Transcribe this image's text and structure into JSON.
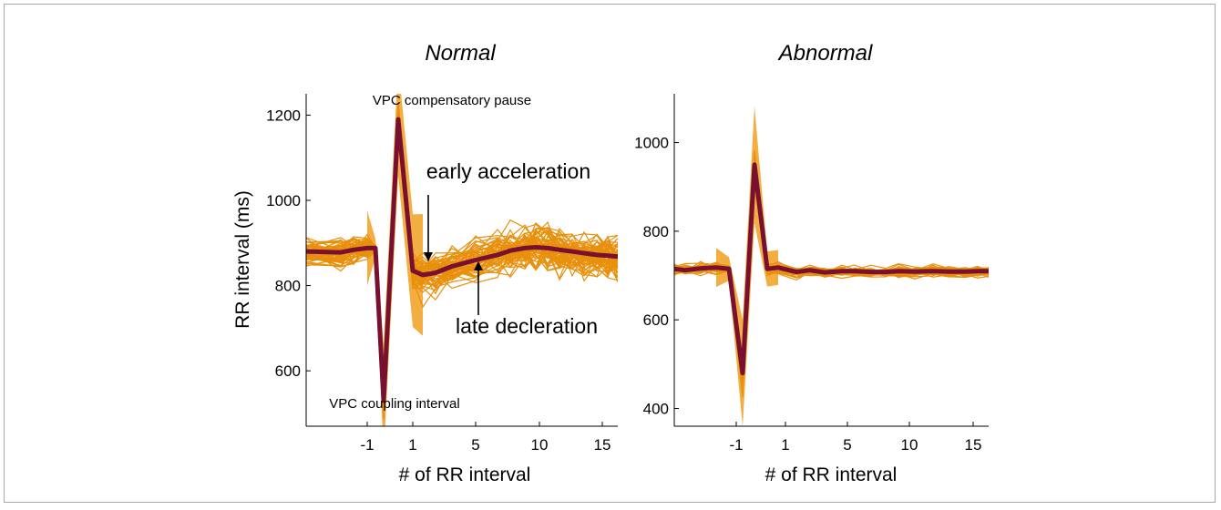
{
  "chart_data": [
    {
      "type": "line",
      "title": "Normal",
      "xlabel": "# of RR interval",
      "ylabel": "RR interval (ms)",
      "x_ticks": [
        "-1",
        "1",
        "5",
        "10",
        "15"
      ],
      "y_ticks": [
        "600",
        "800",
        "1000",
        "1200"
      ],
      "ylim": [
        470,
        1250
      ],
      "x_positions": [
        "-5",
        "-4",
        "-3",
        "-2",
        "-1",
        "VPC coupling interval",
        "VPC compensatory pause",
        "1",
        "2",
        "3",
        "4",
        "5",
        "6",
        "7",
        "8",
        "9",
        "10",
        "11",
        "12",
        "13",
        "14",
        "15",
        "16"
      ],
      "mean_series": [
        880,
        878,
        884,
        888,
        888,
        530,
        1190,
        835,
        825,
        830,
        845,
        860,
        872,
        882,
        888,
        890,
        888,
        884,
        880,
        876,
        872,
        870,
        868
      ],
      "individual_series_count": 60,
      "individual_spread_ms": [
        55,
        55,
        50,
        40,
        10,
        60,
        60,
        60,
        65,
        70,
        75,
        75,
        75,
        78,
        80,
        80,
        78,
        75,
        75,
        72,
        72,
        72,
        72
      ],
      "annotations": [
        "VPC compensatory pause",
        "VPC coupling interval",
        "early acceleration",
        "late decleration"
      ],
      "colors": {
        "individual": "#e8900c",
        "mean": "#7a1030",
        "envelope": "#f0a020"
      }
    },
    {
      "type": "line",
      "title": "Abnormal",
      "xlabel": "# of RR interval",
      "ylabel": "",
      "x_ticks": [
        "-1",
        "1",
        "5",
        "10",
        "15"
      ],
      "y_ticks": [
        "400",
        "600",
        "800",
        "1000"
      ],
      "ylim": [
        360,
        1110
      ],
      "x_positions": [
        "-5",
        "-4",
        "-3",
        "-2",
        "-1",
        "VPC coupling interval",
        "VPC compensatory pause",
        "1",
        "2",
        "3",
        "4",
        "5",
        "6",
        "7",
        "8",
        "9",
        "10",
        "11",
        "12",
        "13",
        "14",
        "15",
        "16"
      ],
      "mean_series": [
        715,
        712,
        716,
        718,
        715,
        480,
        950,
        715,
        718,
        708,
        712,
        707,
        710,
        710,
        708,
        708,
        710,
        709,
        710,
        709,
        709,
        710,
        710
      ],
      "individual_series_count": 40,
      "individual_spread_ms": [
        18,
        18,
        20,
        20,
        12,
        55,
        60,
        18,
        18,
        18,
        18,
        18,
        18,
        18,
        18,
        18,
        18,
        18,
        18,
        18,
        18,
        18,
        18
      ],
      "annotations": [],
      "colors": {
        "individual": "#e8900c",
        "mean": "#7a1030",
        "envelope": "#f0a020"
      }
    }
  ]
}
